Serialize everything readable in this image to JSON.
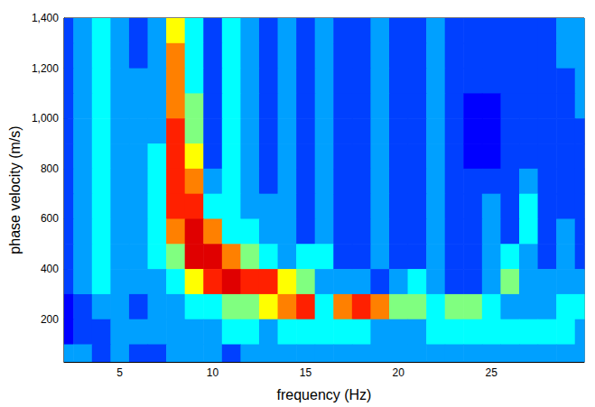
{
  "chart_data": {
    "type": "heatmap",
    "x_label": "frequency (Hz)",
    "y_label": "phase velocity (m/s)",
    "xlim": [
      2,
      30
    ],
    "ylim": [
      30,
      1400
    ],
    "xticks": [
      5,
      10,
      15,
      20,
      25
    ],
    "yticks": [
      200,
      400,
      600,
      800,
      1000,
      1200,
      1400
    ],
    "grid": false,
    "value_range": [
      0,
      9
    ],
    "x": [
      2,
      3,
      4,
      5,
      6,
      7,
      8,
      9,
      10,
      11,
      12,
      13,
      14,
      15,
      16,
      17,
      18,
      19,
      20,
      21,
      22,
      23,
      24,
      25,
      26,
      27,
      28,
      29,
      30
    ],
    "y": [
      1350,
      1250,
      1150,
      1050,
      950,
      850,
      750,
      650,
      550,
      450,
      350,
      250,
      150,
      50
    ],
    "values": [
      [
        2,
        3,
        4,
        3,
        2,
        3,
        6,
        4,
        2,
        4,
        3,
        2,
        3,
        2,
        3,
        2,
        2,
        3,
        2,
        2,
        3,
        2,
        2,
        2,
        2,
        2,
        2,
        3,
        3
      ],
      [
        2,
        3,
        4,
        3,
        2,
        3,
        7,
        4,
        2,
        4,
        3,
        2,
        3,
        2,
        3,
        2,
        2,
        3,
        2,
        2,
        3,
        2,
        2,
        2,
        2,
        2,
        2,
        3,
        3
      ],
      [
        2,
        3,
        4,
        3,
        3,
        3,
        7,
        4,
        2,
        4,
        3,
        2,
        3,
        2,
        3,
        2,
        2,
        3,
        2,
        2,
        3,
        2,
        2,
        2,
        2,
        2,
        2,
        2,
        3
      ],
      [
        2,
        3,
        4,
        3,
        3,
        3,
        7,
        5,
        2,
        4,
        3,
        2,
        3,
        2,
        3,
        2,
        2,
        3,
        2,
        2,
        3,
        2,
        1,
        1,
        2,
        2,
        2,
        2,
        3
      ],
      [
        2,
        3,
        4,
        3,
        3,
        3,
        8,
        5,
        2,
        4,
        3,
        2,
        3,
        2,
        3,
        2,
        2,
        3,
        2,
        2,
        3,
        2,
        1,
        1,
        2,
        2,
        2,
        2,
        2
      ],
      [
        2,
        3,
        4,
        3,
        3,
        4,
        8,
        6,
        2,
        4,
        3,
        2,
        3,
        2,
        3,
        2,
        2,
        3,
        2,
        2,
        3,
        2,
        1,
        1,
        2,
        2,
        2,
        2,
        2
      ],
      [
        2,
        3,
        4,
        3,
        3,
        4,
        8,
        7,
        3,
        4,
        3,
        2,
        3,
        2,
        3,
        2,
        2,
        3,
        2,
        2,
        3,
        2,
        2,
        2,
        2,
        3,
        2,
        2,
        2
      ],
      [
        2,
        3,
        4,
        3,
        3,
        4,
        8,
        8,
        4,
        4,
        3,
        3,
        3,
        2,
        3,
        2,
        2,
        3,
        2,
        2,
        3,
        2,
        2,
        3,
        2,
        4,
        2,
        2,
        2
      ],
      [
        2,
        3,
        4,
        3,
        3,
        4,
        7,
        9,
        7,
        4,
        4,
        3,
        3,
        2,
        3,
        2,
        2,
        3,
        2,
        2,
        3,
        2,
        2,
        3,
        2,
        4,
        2,
        3,
        2
      ],
      [
        2,
        3,
        4,
        3,
        3,
        4,
        5,
        9,
        9,
        7,
        5,
        4,
        3,
        4,
        4,
        2,
        2,
        3,
        2,
        2,
        3,
        2,
        2,
        3,
        4,
        3,
        2,
        3,
        2
      ],
      [
        2,
        3,
        4,
        3,
        3,
        3,
        4,
        6,
        8,
        9,
        8,
        8,
        6,
        5,
        3,
        3,
        3,
        2,
        3,
        4,
        3,
        2,
        2,
        3,
        5,
        3,
        3,
        3,
        3
      ],
      [
        1,
        2,
        3,
        3,
        2,
        3,
        3,
        4,
        4,
        5,
        5,
        6,
        7,
        8,
        4,
        7,
        8,
        7,
        5,
        5,
        4,
        5,
        5,
        4,
        3,
        3,
        3,
        4,
        4
      ],
      [
        1,
        2,
        2,
        3,
        3,
        3,
        3,
        3,
        3,
        4,
        4,
        3,
        4,
        4,
        4,
        4,
        4,
        3,
        3,
        3,
        4,
        4,
        4,
        4,
        4,
        4,
        4,
        4,
        3
      ],
      [
        3,
        3,
        2,
        3,
        2,
        2,
        3,
        3,
        3,
        2,
        3,
        3,
        3,
        3,
        3,
        3,
        3,
        3,
        3,
        3,
        3,
        3,
        3,
        3,
        3,
        3,
        3,
        3,
        3
      ]
    ]
  }
}
